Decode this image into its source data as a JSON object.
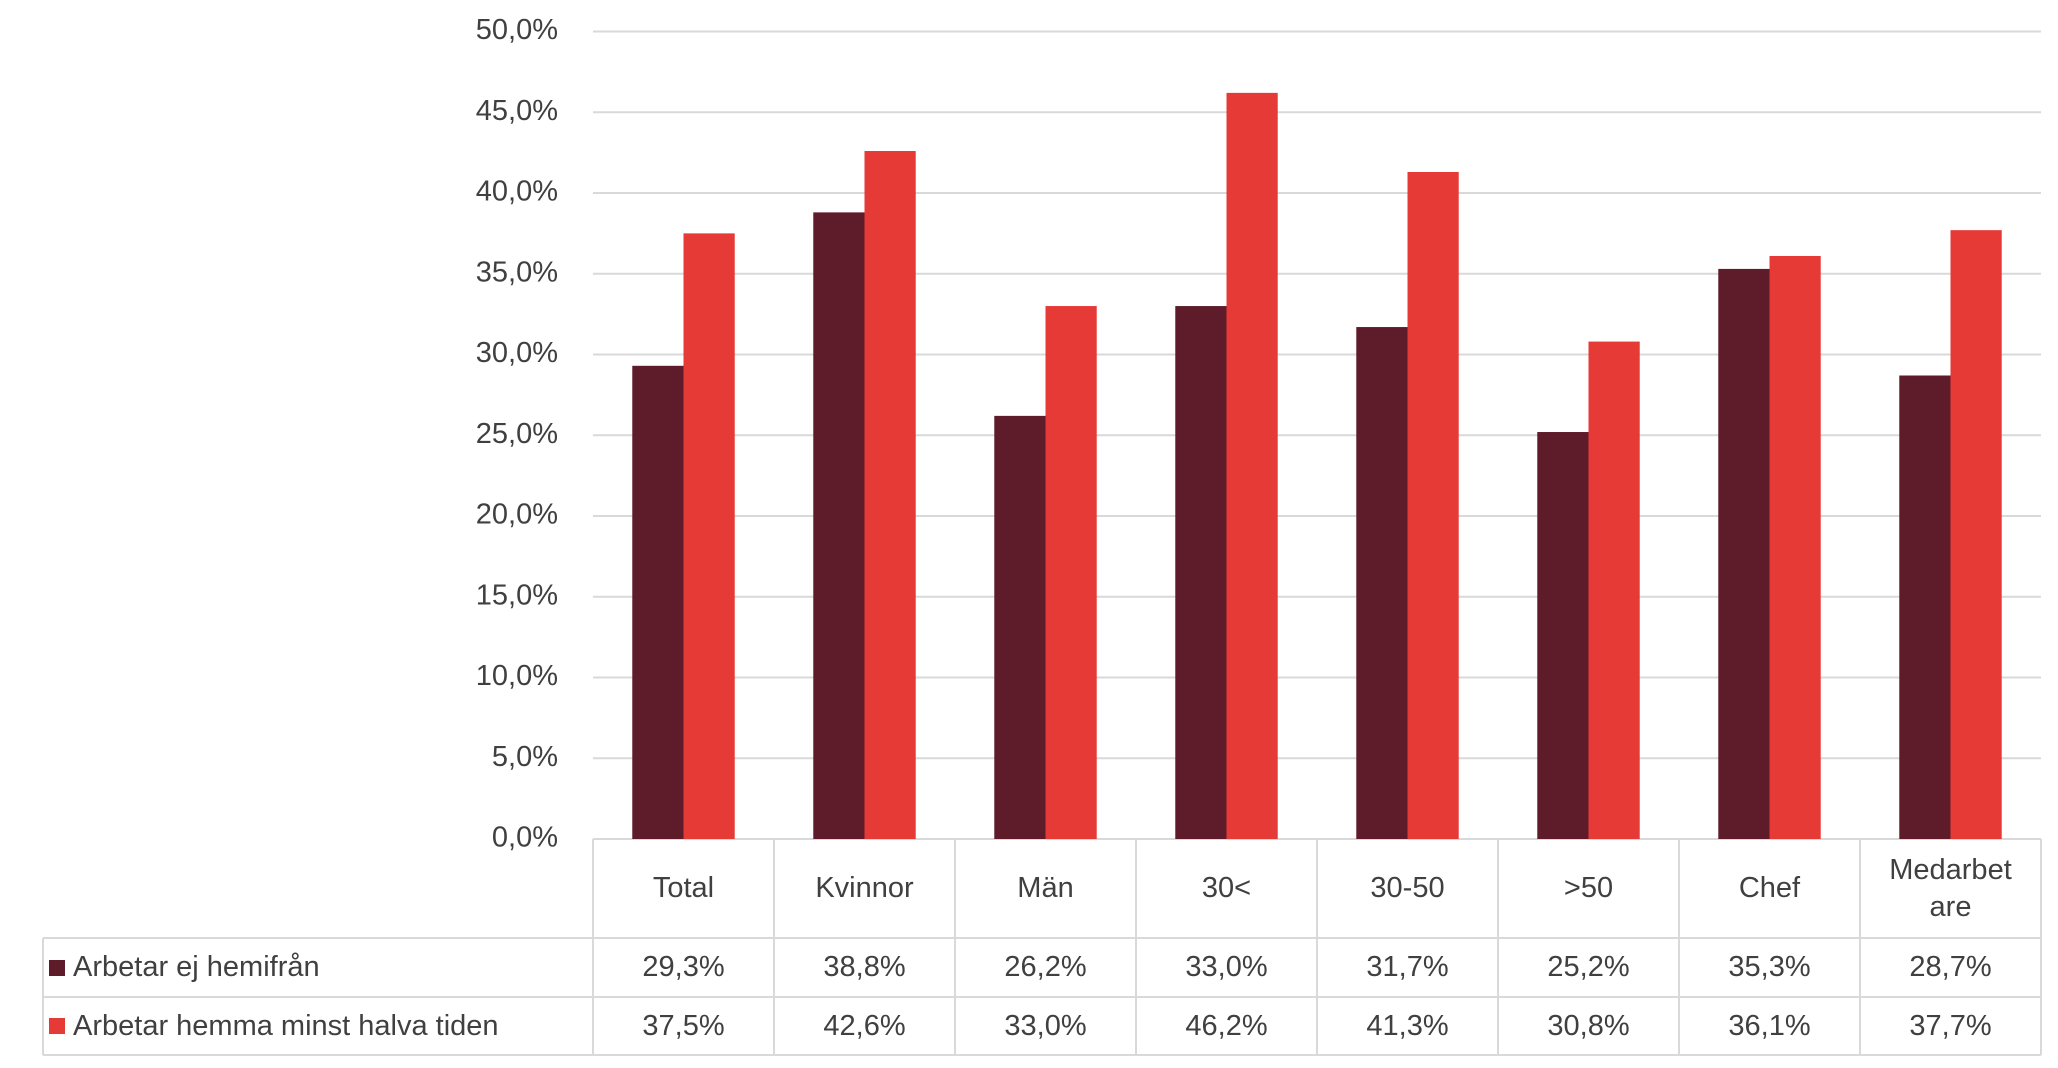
{
  "chart_data": {
    "type": "bar",
    "categories": [
      "Total",
      "Kvinnor",
      "Män",
      "30<",
      "30-50",
      ">50",
      "Chef",
      "Medarbetare"
    ],
    "series": [
      {
        "name": "Arbetar ej hemifrån",
        "color": "#5e1c2b",
        "values": [
          29.3,
          38.8,
          26.2,
          33.0,
          31.7,
          25.2,
          35.3,
          28.7
        ],
        "value_labels": [
          "29,3%",
          "38,8%",
          "26,2%",
          "33,0%",
          "31,7%",
          "25,2%",
          "35,3%",
          "28,7%"
        ]
      },
      {
        "name": "Arbetar hemma minst halva tiden",
        "color": "#e63a37",
        "values": [
          37.5,
          42.6,
          33.0,
          46.2,
          41.3,
          30.8,
          36.1,
          37.7
        ],
        "value_labels": [
          "37,5%",
          "42,6%",
          "33,0%",
          "46,2%",
          "41,3%",
          "30,8%",
          "36,1%",
          "37,7%"
        ]
      }
    ],
    "ylim": [
      0,
      50
    ],
    "yticks": [
      {
        "value": 0,
        "label": "0,0%"
      },
      {
        "value": 5,
        "label": "5,0%"
      },
      {
        "value": 10,
        "label": "10,0%"
      },
      {
        "value": 15,
        "label": "15,0%"
      },
      {
        "value": 20,
        "label": "20,0%"
      },
      {
        "value": 25,
        "label": "25,0%"
      },
      {
        "value": 30,
        "label": "30,0%"
      },
      {
        "value": 35,
        "label": "35,0%"
      },
      {
        "value": 40,
        "label": "40,0%"
      },
      {
        "value": 45,
        "label": "45,0%"
      },
      {
        "value": 50,
        "label": "50,0%"
      }
    ],
    "grid": true,
    "data_table": true
  }
}
